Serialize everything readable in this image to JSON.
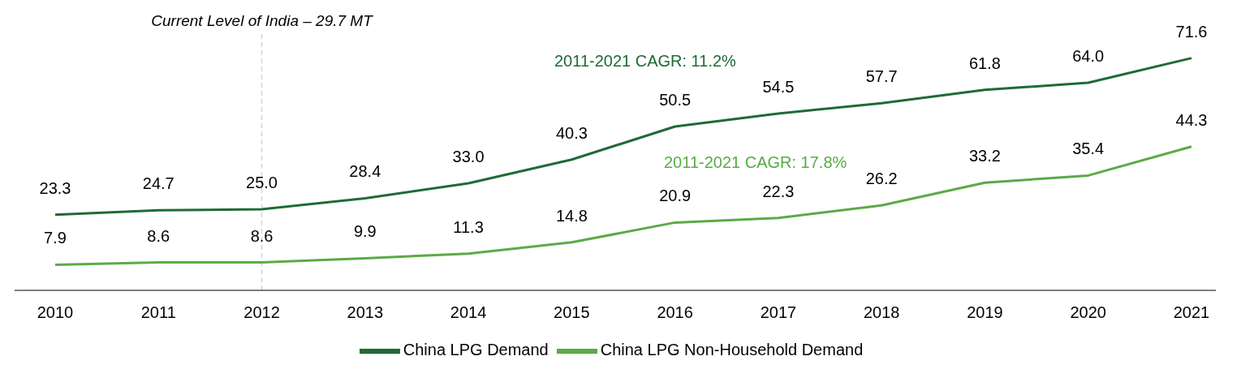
{
  "chart_data": {
    "type": "line",
    "categories": [
      "2010",
      "2011",
      "2012",
      "2013",
      "2014",
      "2015",
      "2016",
      "2017",
      "2018",
      "2019",
      "2020",
      "2021"
    ],
    "series": [
      {
        "name": "China LPG Demand",
        "color": "#1e6b35",
        "values": [
          23.3,
          24.7,
          25.0,
          28.4,
          33.0,
          40.3,
          50.5,
          54.5,
          57.7,
          61.8,
          64.0,
          71.6
        ],
        "value_labels": [
          "23.3",
          "24.7",
          "25.0",
          "28.4",
          "33.0",
          "40.3",
          "50.5",
          "54.5",
          "57.7",
          "61.8",
          "64.0",
          "71.6"
        ]
      },
      {
        "name": "China LPG Non-Household Demand",
        "color": "#5aab46",
        "values": [
          7.9,
          8.6,
          8.6,
          9.9,
          11.3,
          14.8,
          20.9,
          22.3,
          26.2,
          33.2,
          35.4,
          44.3
        ],
        "value_labels": [
          "7.9",
          "8.6",
          "8.6",
          "9.9",
          "11.3",
          "14.8",
          "20.9",
          "22.3",
          "26.2",
          "33.2",
          "35.4",
          "44.3"
        ]
      }
    ],
    "ylim": [
      0,
      80
    ],
    "tick_labels": "x",
    "legend": "bottom",
    "grid": false,
    "marker": "none",
    "line_style": "solid",
    "ref_lines": [
      {
        "axis": "x",
        "value": "2012",
        "label": "Current Level of India – 29.7 MT",
        "color": "#c8c8c8",
        "line_style": "dashed"
      }
    ],
    "annotations": [
      "2011-2021 CAGR: 11.2%",
      "2011-2021 CAGR: 17.8%"
    ]
  }
}
